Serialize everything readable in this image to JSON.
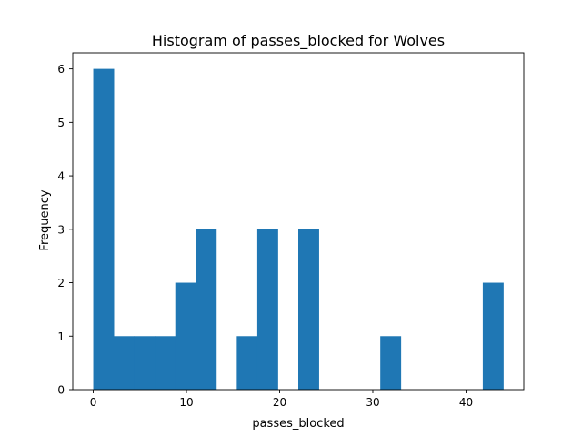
{
  "chart_data": {
    "type": "bar",
    "title": "Histogram of passes_blocked for Wolves",
    "xlabel": "passes_blocked",
    "ylabel": "Frequency",
    "bins": [
      {
        "start": 0.0,
        "end": 2.2,
        "count": 6
      },
      {
        "start": 2.2,
        "end": 4.4,
        "count": 1
      },
      {
        "start": 4.4,
        "end": 6.6,
        "count": 1
      },
      {
        "start": 6.6,
        "end": 8.8,
        "count": 1
      },
      {
        "start": 8.8,
        "end": 11.0,
        "count": 2
      },
      {
        "start": 11.0,
        "end": 13.2,
        "count": 3
      },
      {
        "start": 13.2,
        "end": 15.4,
        "count": 0
      },
      {
        "start": 15.4,
        "end": 17.6,
        "count": 1
      },
      {
        "start": 17.6,
        "end": 19.8,
        "count": 3
      },
      {
        "start": 19.8,
        "end": 22.0,
        "count": 0
      },
      {
        "start": 22.0,
        "end": 24.2,
        "count": 3
      },
      {
        "start": 24.2,
        "end": 26.4,
        "count": 0
      },
      {
        "start": 26.4,
        "end": 28.6,
        "count": 0
      },
      {
        "start": 28.6,
        "end": 30.8,
        "count": 0
      },
      {
        "start": 30.8,
        "end": 33.0,
        "count": 1
      },
      {
        "start": 33.0,
        "end": 35.2,
        "count": 0
      },
      {
        "start": 35.2,
        "end": 37.4,
        "count": 0
      },
      {
        "start": 37.4,
        "end": 39.6,
        "count": 0
      },
      {
        "start": 39.6,
        "end": 41.8,
        "count": 0
      },
      {
        "start": 41.8,
        "end": 44.0,
        "count": 2
      }
    ],
    "xlim": [
      -2.2,
      46.2
    ],
    "ylim": [
      0,
      6.3
    ],
    "xticks": [
      0,
      10,
      20,
      30,
      40
    ],
    "yticks": [
      0,
      1,
      2,
      3,
      4,
      5,
      6
    ],
    "bar_color": "#1f77b4",
    "grid": false,
    "legend": "none"
  }
}
